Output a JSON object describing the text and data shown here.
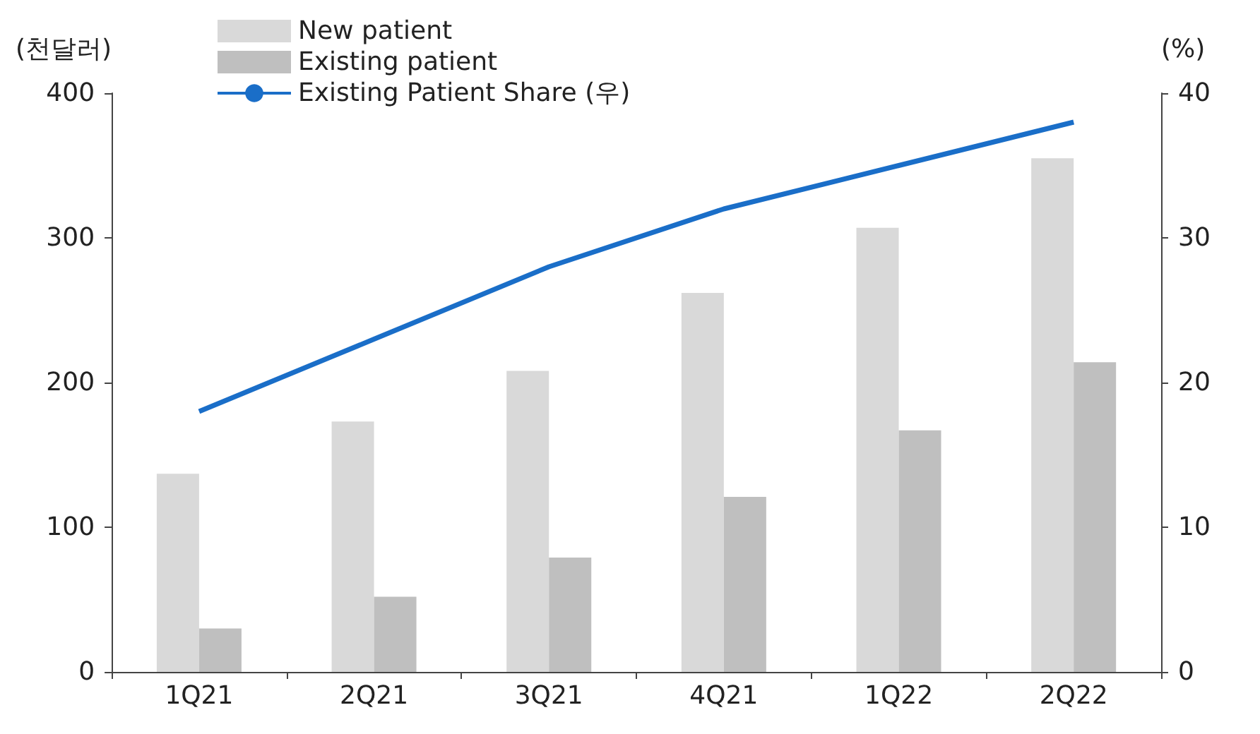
{
  "chart_data": {
    "type": "bar",
    "ylabel": "(천달러)",
    "y2label": "(%)",
    "categories": [
      "1Q21",
      "2Q21",
      "3Q21",
      "4Q21",
      "1Q22",
      "2Q22"
    ],
    "series": [
      {
        "name": "New patient",
        "color": "#d9d9d9",
        "values": [
          137,
          173,
          208,
          262,
          307,
          355
        ]
      },
      {
        "name": "Existing patient",
        "color": "#bfbfbf",
        "values": [
          30,
          52,
          79,
          121,
          167,
          214
        ]
      },
      {
        "name": "Existing Patient Share (우)",
        "type": "line",
        "axis": "y2",
        "color": "#1a6ec8",
        "values": [
          18,
          23,
          28,
          32,
          35,
          38
        ]
      }
    ],
    "ylim": [
      0,
      400
    ],
    "yticks": [
      0,
      100,
      200,
      300,
      400
    ],
    "y2lim": [
      0,
      40
    ],
    "y2ticks": [
      0,
      10,
      20,
      30,
      40
    ],
    "grid": false,
    "legend": "top left",
    "marker": "none"
  }
}
